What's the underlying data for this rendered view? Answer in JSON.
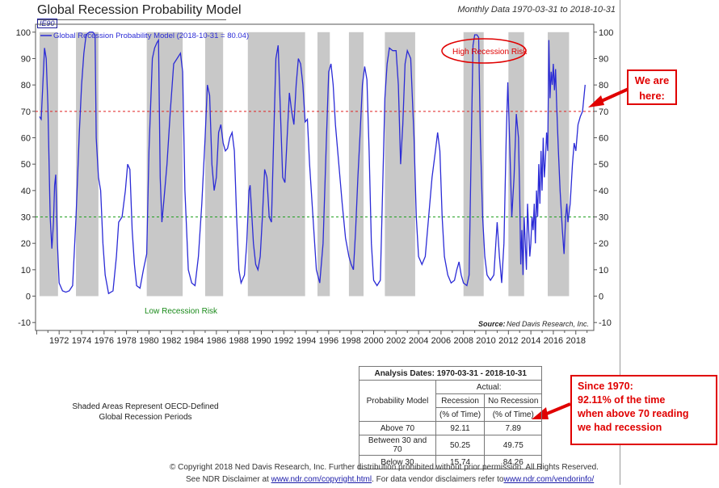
{
  "header": {
    "title": "Global Recession Probability Model",
    "code": "IE90",
    "subtitle": "Monthly Data 1970-03-31 to 2018-10-31"
  },
  "chart_data": {
    "type": "line",
    "series": [
      {
        "name": "Global Recession Probability Model (2018-10-31 = 80.04)",
        "color": "#2b2bd6",
        "points": [
          [
            1970.25,
            68
          ],
          [
            1970.4,
            67
          ],
          [
            1970.55,
            80
          ],
          [
            1970.7,
            94
          ],
          [
            1970.85,
            90
          ],
          [
            1971.0,
            72
          ],
          [
            1971.2,
            30
          ],
          [
            1971.35,
            18
          ],
          [
            1971.5,
            28
          ],
          [
            1971.6,
            42
          ],
          [
            1971.7,
            46
          ],
          [
            1971.85,
            20
          ],
          [
            1972.0,
            5
          ],
          [
            1972.3,
            2
          ],
          [
            1972.6,
            1.5
          ],
          [
            1972.9,
            2
          ],
          [
            1973.2,
            4
          ],
          [
            1973.5,
            30
          ],
          [
            1973.8,
            62
          ],
          [
            1974.0,
            80
          ],
          [
            1974.2,
            92
          ],
          [
            1974.4,
            99
          ],
          [
            1974.7,
            100
          ],
          [
            1975.0,
            100
          ],
          [
            1975.2,
            99
          ],
          [
            1975.3,
            60
          ],
          [
            1975.5,
            45
          ],
          [
            1975.7,
            40
          ],
          [
            1975.9,
            20
          ],
          [
            1976.1,
            8
          ],
          [
            1976.4,
            1
          ],
          [
            1976.8,
            2
          ],
          [
            1977.1,
            15
          ],
          [
            1977.3,
            28
          ],
          [
            1977.6,
            30
          ],
          [
            1977.9,
            40
          ],
          [
            1978.1,
            50
          ],
          [
            1978.3,
            48
          ],
          [
            1978.5,
            25
          ],
          [
            1978.7,
            12
          ],
          [
            1978.9,
            4
          ],
          [
            1979.2,
            3
          ],
          [
            1979.5,
            10
          ],
          [
            1979.8,
            16
          ],
          [
            1980.0,
            55
          ],
          [
            1980.3,
            90
          ],
          [
            1980.5,
            94
          ],
          [
            1980.7,
            96
          ],
          [
            1980.85,
            97
          ],
          [
            1981.0,
            45
          ],
          [
            1981.15,
            28
          ],
          [
            1981.3,
            35
          ],
          [
            1981.6,
            50
          ],
          [
            1981.9,
            70
          ],
          [
            1982.2,
            88
          ],
          [
            1982.5,
            90
          ],
          [
            1982.8,
            92
          ],
          [
            1983.0,
            85
          ],
          [
            1983.2,
            40
          ],
          [
            1983.5,
            10
          ],
          [
            1983.8,
            5
          ],
          [
            1984.1,
            4
          ],
          [
            1984.4,
            15
          ],
          [
            1984.7,
            35
          ],
          [
            1985.0,
            60
          ],
          [
            1985.2,
            80
          ],
          [
            1985.4,
            76
          ],
          [
            1985.6,
            50
          ],
          [
            1985.8,
            40
          ],
          [
            1986.0,
            45
          ],
          [
            1986.2,
            62
          ],
          [
            1986.4,
            65
          ],
          [
            1986.6,
            58
          ],
          [
            1986.8,
            55
          ],
          [
            1987.0,
            56
          ],
          [
            1987.2,
            60
          ],
          [
            1987.4,
            62
          ],
          [
            1987.6,
            55
          ],
          [
            1987.8,
            30
          ],
          [
            1988.0,
            10
          ],
          [
            1988.2,
            5
          ],
          [
            1988.5,
            8
          ],
          [
            1988.7,
            20
          ],
          [
            1988.9,
            40
          ],
          [
            1989.0,
            42
          ],
          [
            1989.1,
            35
          ],
          [
            1989.3,
            20
          ],
          [
            1989.5,
            12
          ],
          [
            1989.7,
            10
          ],
          [
            1989.9,
            15
          ],
          [
            1990.1,
            30
          ],
          [
            1990.3,
            48
          ],
          [
            1990.5,
            45
          ],
          [
            1990.7,
            30
          ],
          [
            1990.9,
            28
          ],
          [
            1991.1,
            60
          ],
          [
            1991.3,
            90
          ],
          [
            1991.5,
            95
          ],
          [
            1991.7,
            70
          ],
          [
            1991.9,
            45
          ],
          [
            1992.1,
            43
          ],
          [
            1992.3,
            60
          ],
          [
            1992.5,
            77
          ],
          [
            1992.7,
            70
          ],
          [
            1992.9,
            65
          ],
          [
            1993.1,
            80
          ],
          [
            1993.3,
            90
          ],
          [
            1993.5,
            88
          ],
          [
            1993.7,
            80
          ],
          [
            1993.9,
            66
          ],
          [
            1994.1,
            67
          ],
          [
            1994.3,
            50
          ],
          [
            1994.6,
            30
          ],
          [
            1994.9,
            10
          ],
          [
            1995.2,
            5
          ],
          [
            1995.5,
            20
          ],
          [
            1995.8,
            60
          ],
          [
            1996.0,
            85
          ],
          [
            1996.2,
            88
          ],
          [
            1996.4,
            80
          ],
          [
            1996.6,
            65
          ],
          [
            1996.8,
            55
          ],
          [
            1997.0,
            45
          ],
          [
            1997.2,
            35
          ],
          [
            1997.5,
            22
          ],
          [
            1997.8,
            15
          ],
          [
            1998.0,
            12
          ],
          [
            1998.2,
            10
          ],
          [
            1998.4,
            25
          ],
          [
            1998.6,
            45
          ],
          [
            1998.8,
            62
          ],
          [
            1999.0,
            80
          ],
          [
            1999.2,
            87
          ],
          [
            1999.4,
            82
          ],
          [
            1999.6,
            55
          ],
          [
            1999.8,
            20
          ],
          [
            2000.0,
            6
          ],
          [
            2000.3,
            4
          ],
          [
            2000.6,
            6
          ],
          [
            2000.8,
            40
          ],
          [
            2001.0,
            75
          ],
          [
            2001.2,
            88
          ],
          [
            2001.4,
            94
          ],
          [
            2001.7,
            93
          ],
          [
            2002.0,
            93
          ],
          [
            2002.2,
            80
          ],
          [
            2002.4,
            50
          ],
          [
            2002.6,
            65
          ],
          [
            2002.8,
            88
          ],
          [
            2003.0,
            93
          ],
          [
            2003.3,
            90
          ],
          [
            2003.6,
            60
          ],
          [
            2003.8,
            30
          ],
          [
            2004.0,
            15
          ],
          [
            2004.3,
            12
          ],
          [
            2004.6,
            15
          ],
          [
            2004.9,
            30
          ],
          [
            2005.2,
            45
          ],
          [
            2005.5,
            55
          ],
          [
            2005.7,
            62
          ],
          [
            2005.9,
            55
          ],
          [
            2006.1,
            30
          ],
          [
            2006.3,
            15
          ],
          [
            2006.6,
            8
          ],
          [
            2006.9,
            5
          ],
          [
            2007.2,
            6
          ],
          [
            2007.4,
            10
          ],
          [
            2007.6,
            13
          ],
          [
            2007.8,
            8
          ],
          [
            2008.0,
            5
          ],
          [
            2008.3,
            4
          ],
          [
            2008.5,
            8
          ],
          [
            2008.7,
            60
          ],
          [
            2008.85,
            95
          ],
          [
            2009.0,
            99
          ],
          [
            2009.2,
            99
          ],
          [
            2009.35,
            98
          ],
          [
            2009.5,
            60
          ],
          [
            2009.7,
            30
          ],
          [
            2009.9,
            15
          ],
          [
            2010.1,
            8
          ],
          [
            2010.4,
            6
          ],
          [
            2010.7,
            8
          ],
          [
            2011.0,
            28
          ],
          [
            2011.2,
            15
          ],
          [
            2011.4,
            5
          ],
          [
            2011.6,
            20
          ],
          [
            2011.8,
            60
          ],
          [
            2011.95,
            81
          ],
          [
            2012.1,
            60
          ],
          [
            2012.3,
            30
          ],
          [
            2012.5,
            45
          ],
          [
            2012.7,
            69
          ],
          [
            2012.9,
            60
          ],
          [
            2013.0,
            40
          ],
          [
            2013.1,
            12
          ],
          [
            2013.2,
            25
          ],
          [
            2013.3,
            8
          ],
          [
            2013.4,
            30
          ],
          [
            2013.5,
            20
          ],
          [
            2013.6,
            10
          ],
          [
            2013.7,
            35
          ],
          [
            2013.8,
            25
          ],
          [
            2013.9,
            15
          ],
          [
            2014.0,
            20
          ],
          [
            2014.1,
            30
          ],
          [
            2014.2,
            25
          ],
          [
            2014.3,
            35
          ],
          [
            2014.4,
            20
          ],
          [
            2014.5,
            40
          ],
          [
            2014.6,
            30
          ],
          [
            2014.7,
            50
          ],
          [
            2014.8,
            35
          ],
          [
            2014.9,
            55
          ],
          [
            2015.0,
            40
          ],
          [
            2015.1,
            60
          ],
          [
            2015.2,
            45
          ],
          [
            2015.3,
            52
          ],
          [
            2015.4,
            62
          ],
          [
            2015.5,
            55
          ],
          [
            2015.6,
            97
          ],
          [
            2015.7,
            75
          ],
          [
            2015.8,
            85
          ],
          [
            2015.9,
            80
          ],
          [
            2016.0,
            88
          ],
          [
            2016.1,
            78
          ],
          [
            2016.2,
            86
          ],
          [
            2016.3,
            72
          ],
          [
            2016.45,
            55
          ],
          [
            2016.6,
            40
          ],
          [
            2016.8,
            25
          ],
          [
            2016.95,
            16
          ],
          [
            2017.1,
            30
          ],
          [
            2017.2,
            35
          ],
          [
            2017.3,
            28
          ],
          [
            2017.5,
            35
          ],
          [
            2017.7,
            50
          ],
          [
            2017.85,
            58
          ],
          [
            2018.0,
            55
          ],
          [
            2018.2,
            65
          ],
          [
            2018.4,
            68
          ],
          [
            2018.6,
            70
          ],
          [
            2018.83,
            80.04
          ]
        ]
      }
    ],
    "recession_periods": [
      [
        1970.25,
        1971.9
      ],
      [
        1973.5,
        1975.5
      ],
      [
        1979.8,
        1983.0
      ],
      [
        1985.0,
        1986.6
      ],
      [
        1988.8,
        1993.9
      ],
      [
        1995.0,
        1996.1
      ],
      [
        1997.8,
        1999.1
      ],
      [
        2001.0,
        2003.7
      ],
      [
        2008.0,
        2009.8
      ],
      [
        2012.0,
        2013.4
      ],
      [
        2015.5,
        2017.4
      ]
    ],
    "reference_lines": [
      {
        "value": 70,
        "color": "#e02020"
      },
      {
        "value": 30,
        "color": "#20a020"
      }
    ],
    "x_ticks": [
      1972,
      1974,
      1976,
      1978,
      1980,
      1982,
      1984,
      1986,
      1988,
      1990,
      1992,
      1994,
      1996,
      1998,
      2000,
      2002,
      2004,
      2006,
      2008,
      2010,
      2012,
      2014,
      2016,
      2018
    ],
    "y_ticks": [
      -10,
      0,
      10,
      20,
      30,
      40,
      50,
      60,
      70,
      80,
      90,
      100
    ],
    "xlim": [
      1969.9,
      2019.6
    ],
    "ylim": [
      -13,
      103
    ],
    "annotations": {
      "high_risk": "High Recession Risk",
      "low_risk": "Low Recession Risk",
      "source_label": "Source:",
      "source_name": "Ned Davis Research, Inc."
    }
  },
  "notes": {
    "shaded_note_line1": "Shaded Areas Represent OECD-Defined",
    "shaded_note_line2": "Global Recession Periods"
  },
  "stats_table": {
    "caption": "Analysis Dates: 1970-03-31 - 2018-10-31",
    "actual": "Actual:",
    "col_model": "Probability Model",
    "col_recession_1": "Recession",
    "col_recession_2": "(% of Time)",
    "col_norecession_1": "No Recession",
    "col_norecession_2": "(% of Time)",
    "rows": [
      {
        "label": "Above 70",
        "recession": "92.11",
        "no_recession": "7.89"
      },
      {
        "label": "Between 30 and 70",
        "recession": "50.25",
        "no_recession": "49.75"
      },
      {
        "label": "Below 30",
        "recession": "15.74",
        "no_recession": "84.26"
      }
    ]
  },
  "footer": {
    "line1": "© Copyright 2018 Ned Davis Research, Inc. Further distribution prohibited without prior permission. All Rights Reserved.",
    "line2_a": "See NDR Disclaimer at ",
    "line2_link1": "www.ndr.com/copyright.html",
    "line2_b": ". For data vendor disclaimers refer to",
    "line2_link2": "www.ndr.com/vendorinfo/"
  },
  "callouts": {
    "here_line1": "We are",
    "here_line2": "here:",
    "since_1": "Since 1970:",
    "since_2": "92.11% of the time",
    "since_3": "when above 70 reading",
    "since_4": "we had recession"
  },
  "colors": {
    "line": "#2b2bd6",
    "shade": "#c8c8c8",
    "callout": "#e00000",
    "high_risk_ellipse": "#e00000",
    "low_risk_text": "#1a8a1a"
  }
}
